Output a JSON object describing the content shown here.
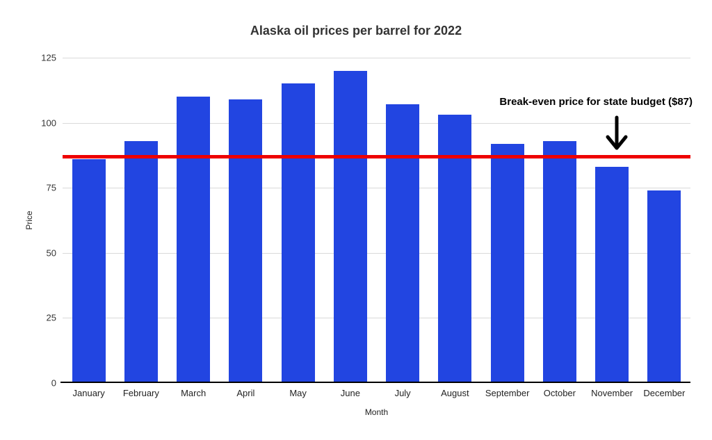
{
  "chart_data": {
    "type": "bar",
    "title": "Alaska oil prices per barrel for 2022",
    "xlabel": "Month",
    "ylabel": "Price",
    "categories": [
      "January",
      "February",
      "March",
      "April",
      "May",
      "June",
      "July",
      "August",
      "September",
      "October",
      "November",
      "December"
    ],
    "values": [
      86,
      93,
      110,
      109,
      115,
      120,
      107,
      103,
      92,
      93,
      83,
      74
    ],
    "ylim": [
      0,
      125
    ],
    "yticks": [
      0,
      25,
      50,
      75,
      100,
      125
    ],
    "grid": true,
    "legend": "none",
    "background": "#ffffff",
    "bar_color": "#2245e1",
    "reference_line": {
      "value": 87,
      "color": "#ee0000",
      "annotation": "Break-even price for state budget ($87)"
    }
  }
}
